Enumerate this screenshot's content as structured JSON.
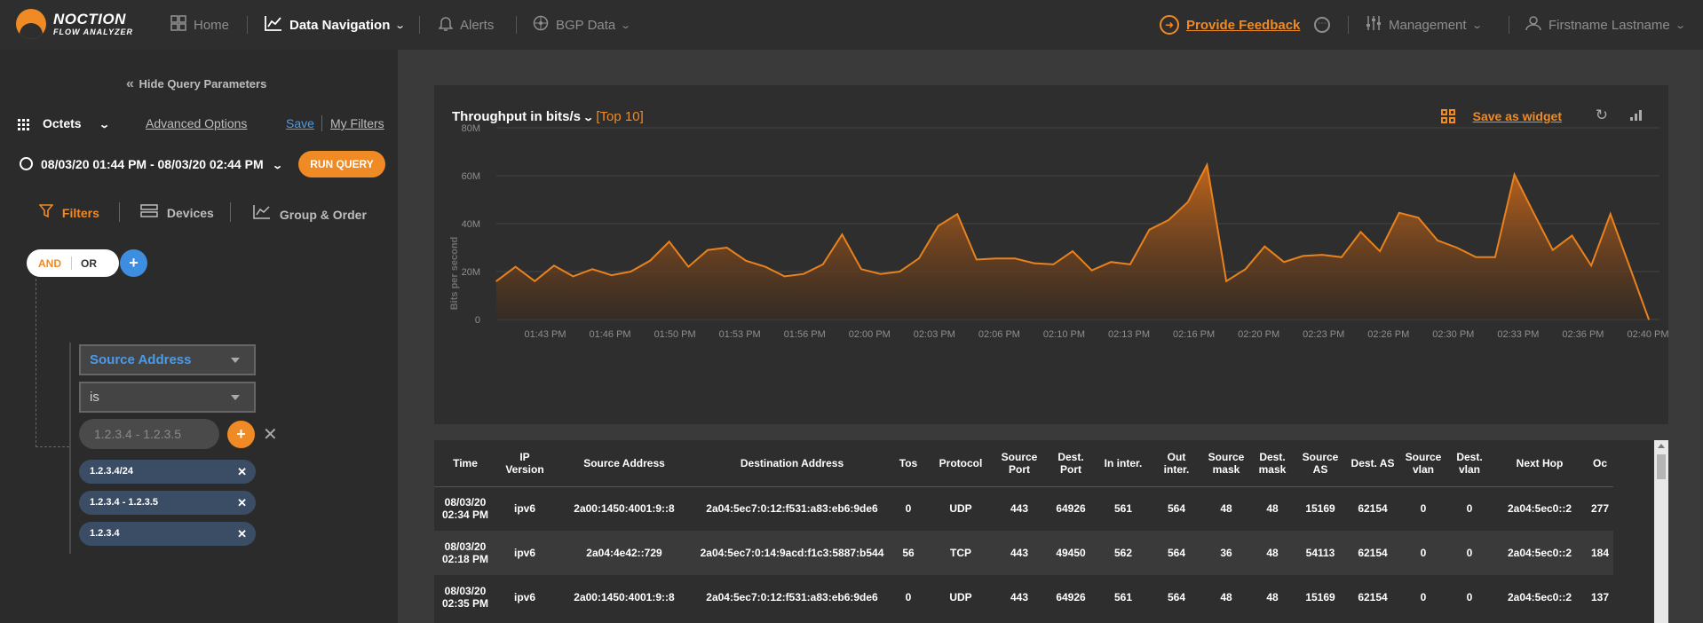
{
  "brand": {
    "line1": "NOCTION",
    "line2": "FLOW ANALYZER",
    "accent": "#f08a24"
  },
  "nav": {
    "home": "Home",
    "data_navigation": "Data Navigation",
    "alerts": "Alerts",
    "bgp_data": "BGP Data",
    "feedback": "Provide Feedback",
    "management": "Management",
    "user": "Firstname Lastname"
  },
  "sidebar": {
    "hide_query": "Hide Query Parameters",
    "metric": "Octets",
    "advanced_options": "Advanced Options",
    "save": "Save",
    "my_filters": "My Filters",
    "date_range": "08/03/20 01:44 PM - 08/03/20 02:44 PM",
    "run_query": "RUN QUERY",
    "tabs": {
      "filters": "Filters",
      "devices": "Devices",
      "group_order": "Group & Order"
    },
    "and_label": "AND",
    "or_label": "OR",
    "plus": "+",
    "field_select": "Source Address",
    "operator_select": "is",
    "value_placeholder": "1.2.3.4 - 1.2.3.5",
    "tags": [
      "1.2.3.4/24",
      "1.2.3.4 - 1.2.3.5",
      "1.2.3.4"
    ]
  },
  "chart_panel": {
    "title_prefix": "Throughput in",
    "unit": "bits/s",
    "top": "[Top 10]",
    "save_widget": "Save as widget"
  },
  "chart_data": {
    "type": "area",
    "ylabel": "Bits per second",
    "yticks": [
      "0",
      "20M",
      "40M",
      "60M",
      "80M"
    ],
    "ylim": [
      0,
      80
    ],
    "xticks": [
      "01:43 PM",
      "01:46 PM",
      "01:50 PM",
      "01:53 PM",
      "01:56 PM",
      "02:00 PM",
      "02:03 PM",
      "02:06 PM",
      "02:10 PM",
      "02:13 PM",
      "02:16 PM",
      "02:20 PM",
      "02:23 PM",
      "02:26 PM",
      "02:30 PM",
      "02:33 PM",
      "02:36 PM",
      "02:40 PM"
    ],
    "color": "#e8821e",
    "values": [
      16,
      22,
      16,
      22.5,
      18,
      21,
      18.5,
      20,
      24.5,
      32.5,
      22,
      29,
      30,
      24.5,
      22,
      18,
      19,
      23,
      35.5,
      21,
      19,
      20,
      25.5,
      39,
      44,
      25,
      25.5,
      25.5,
      23.5,
      23,
      28.5,
      20.5,
      24,
      23,
      37.5,
      41.5,
      49,
      64.5,
      16,
      21,
      30.5,
      24,
      26.5,
      27,
      26,
      36.5,
      28.5,
      44.5,
      42.5,
      33,
      30,
      26,
      26,
      60.5,
      44.5,
      29,
      35,
      22.5,
      44,
      22,
      0
    ]
  },
  "table": {
    "headers": [
      "Time",
      "IP Version",
      "Source Address",
      "Destination Address",
      "Tos",
      "Protocol",
      "Source Port",
      "Dest. Port",
      "In inter.",
      "Out inter.",
      "Source mask",
      "Dest. mask",
      "Source AS",
      "Dest. AS",
      "Source vlan",
      "Dest. vlan",
      "Next Hop",
      "Oc"
    ],
    "rows": [
      [
        "08/03/20 02:34 PM",
        "ipv6",
        "2a00:1450:4001:9::8",
        "2a04:5ec7:0:12:f531:a83:eb6:9de6",
        "0",
        "UDP",
        "443",
        "64926",
        "561",
        "564",
        "48",
        "48",
        "15169",
        "62154",
        "0",
        "0",
        "2a04:5ec0::2",
        "277"
      ],
      [
        "08/03/20 02:18 PM",
        "ipv6",
        "2a04:4e42::729",
        "2a04:5ec7:0:14:9acd:f1c3:5887:b544",
        "56",
        "TCP",
        "443",
        "49450",
        "562",
        "564",
        "36",
        "48",
        "54113",
        "62154",
        "0",
        "0",
        "2a04:5ec0::2",
        "184"
      ],
      [
        "08/03/20 02:35 PM",
        "ipv6",
        "2a00:1450:4001:9::8",
        "2a04:5ec7:0:12:f531:a83:eb6:9de6",
        "0",
        "UDP",
        "443",
        "64926",
        "561",
        "564",
        "48",
        "48",
        "15169",
        "62154",
        "0",
        "0",
        "2a04:5ec0::2",
        "137"
      ]
    ]
  }
}
